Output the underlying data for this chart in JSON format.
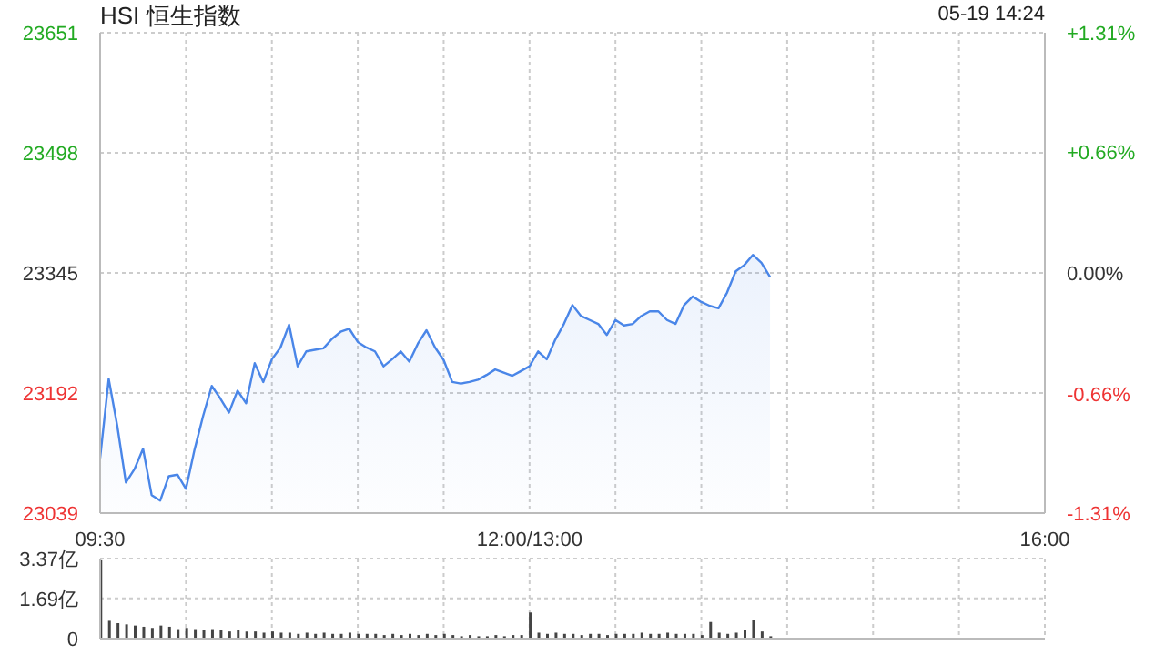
{
  "chart_data": [
    {
      "type": "area",
      "title": "HSI 恒生指数",
      "annotations": [
        "05-19 14:24"
      ],
      "categories": [
        "09:30",
        null,
        null,
        null,
        null,
        null,
        null,
        null,
        null,
        null,
        null,
        null,
        null,
        null,
        null,
        null,
        null,
        null,
        null,
        null,
        null,
        null,
        null,
        null,
        null,
        null,
        null,
        null,
        null,
        null,
        null,
        null,
        null,
        null,
        null,
        null,
        null,
        null,
        null,
        null,
        null,
        null,
        null,
        null,
        null,
        null,
        null,
        null,
        null,
        null,
        "12:00/13:00",
        null,
        null,
        null,
        null,
        null,
        null,
        null,
        null,
        null,
        null,
        null,
        null,
        null,
        null,
        null,
        null,
        null,
        null,
        null,
        null,
        null,
        null,
        null,
        null,
        null,
        null,
        null,
        null,
        null,
        null,
        null,
        null,
        null,
        null,
        null,
        null,
        null,
        null,
        null,
        null,
        null,
        null,
        null,
        null,
        null,
        null,
        null,
        null,
        null,
        null,
        null,
        null,
        null,
        null,
        null,
        null,
        null,
        null,
        null,
        "16:00"
      ],
      "series": [
        {
          "color": "#4a86e8",
          "values": [
            23109,
            23210,
            23150,
            23078,
            23095,
            23121,
            23062,
            23055,
            23086,
            23088,
            23070,
            23120,
            23163,
            23201,
            23185,
            23167,
            23195,
            23179,
            23230,
            23206,
            23235,
            23250,
            23279,
            23226,
            23245,
            23247,
            23249,
            23261,
            23270,
            23274,
            23257,
            23250,
            23245,
            23226,
            23235,
            23245,
            23232,
            23255,
            23272,
            23250,
            23234,
            23206,
            23204,
            23206,
            23209,
            23215,
            23222,
            23218,
            23214,
            23220,
            23226,
            23245,
            23235,
            23260,
            23280,
            23304,
            23290,
            23285,
            23280,
            23266,
            23285,
            23278,
            23280,
            23290,
            23296,
            23296,
            23285,
            23280,
            23304,
            23315,
            23308,
            23303,
            23300,
            23320,
            23347,
            23355,
            23368,
            23358,
            23340,
            null,
            null,
            null,
            null,
            null,
            null,
            null,
            null,
            null,
            null,
            null,
            null,
            null,
            null,
            null,
            null,
            null,
            null,
            null,
            null,
            null,
            null,
            null,
            null,
            null,
            null,
            null,
            null,
            null,
            null,
            null,
            null
          ]
        }
      ],
      "ylim": [
        23039,
        23651
      ],
      "yticks": [
        23039,
        23192,
        23345,
        23498,
        23651
      ],
      "y2lim": [
        -1.31,
        1.31
      ],
      "y2ticks": [
        {
          "value": -1.31,
          "label": "-1.31%"
        },
        {
          "value": -0.66,
          "label": "-0.66%"
        },
        {
          "value": 0,
          "label": "0.00%"
        },
        {
          "value": 0.66,
          "label": "+0.66%"
        },
        {
          "value": 1.31,
          "label": "+1.31%"
        }
      ],
      "grid": true
    },
    {
      "type": "bar",
      "color": "#444444",
      "categories": [
        null,
        null,
        null,
        null,
        null,
        null,
        null,
        null,
        null,
        null,
        null,
        null,
        null,
        null,
        null,
        null,
        null,
        null,
        null,
        null,
        null,
        null,
        null,
        null,
        null,
        null,
        null,
        null,
        null,
        null,
        null,
        null,
        null,
        null,
        null,
        null,
        null,
        null,
        null,
        null,
        null,
        null,
        null,
        null,
        null,
        null,
        null,
        null,
        null,
        null,
        null,
        null,
        null,
        null,
        null,
        null,
        null,
        null,
        null,
        null,
        null,
        null,
        null,
        null,
        null,
        null,
        null,
        null,
        null,
        null,
        null,
        null,
        null,
        null,
        null,
        null,
        null,
        null,
        null,
        null,
        null,
        null,
        null,
        null,
        null,
        null,
        null,
        null,
        null,
        null,
        null,
        null,
        null,
        null,
        null,
        null,
        null,
        null,
        null,
        null,
        null,
        null,
        null,
        null,
        null,
        null,
        null,
        null,
        null,
        null,
        null
      ],
      "values": [
        3.3,
        0.75,
        0.65,
        0.6,
        0.55,
        0.5,
        0.45,
        0.55,
        0.5,
        0.4,
        0.45,
        0.4,
        0.35,
        0.4,
        0.35,
        0.3,
        0.35,
        0.3,
        0.3,
        0.25,
        0.3,
        0.25,
        0.25,
        0.2,
        0.25,
        0.2,
        0.25,
        0.2,
        0.2,
        0.25,
        0.2,
        0.2,
        0.2,
        0.15,
        0.2,
        0.15,
        0.2,
        0.15,
        0.2,
        0.15,
        0.2,
        0.15,
        0.1,
        0.15,
        0.1,
        0.1,
        0.15,
        0.1,
        0.15,
        0.15,
        1.1,
        0.25,
        0.2,
        0.25,
        0.2,
        0.2,
        0.15,
        0.2,
        0.2,
        0.15,
        0.2,
        0.2,
        0.2,
        0.25,
        0.2,
        0.2,
        0.25,
        0.2,
        0.2,
        0.2,
        0.15,
        0.7,
        0.25,
        0.2,
        0.25,
        0.35,
        0.8,
        0.3,
        0.1,
        null,
        null,
        null,
        null,
        null,
        null,
        null,
        null,
        null,
        null,
        null,
        null,
        null,
        null,
        null,
        null,
        null,
        null,
        null,
        null,
        null,
        null,
        null,
        null,
        null,
        null,
        null,
        null,
        null,
        null,
        null,
        null
      ],
      "ylim": [
        0,
        3.37
      ],
      "yticks": [
        0,
        {
          "value": 1.69,
          "label": "1.69亿"
        },
        {
          "value": 3.37,
          "label": "3.37亿"
        }
      ],
      "grid": true,
      "tick_labels": "y"
    }
  ]
}
